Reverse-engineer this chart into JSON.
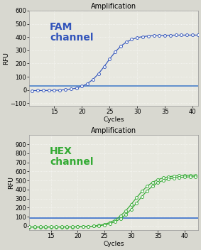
{
  "title": "Amplification",
  "fam_label": "FAM\nchannel",
  "hex_label": "HEX\nchannel",
  "ylabel": "RFU",
  "xlabel": "Cycles",
  "fam_color": "#3355bb",
  "hex_color": "#33aa33",
  "threshold_color_fam": "#5588cc",
  "threshold_color_hex": "#4477cc",
  "fam_ylim": [
    -120,
    600
  ],
  "hex_ylim": [
    -50,
    1000
  ],
  "fam_yticks": [
    -100,
    0,
    100,
    200,
    300,
    400,
    500,
    600
  ],
  "hex_yticks": [
    0,
    100,
    200,
    300,
    400,
    500,
    600,
    700,
    800,
    900
  ],
  "fam_xlim": [
    10.5,
    41
  ],
  "hex_xlim": [
    11,
    42.5
  ],
  "fam_xticks": [
    15,
    20,
    25,
    30,
    35,
    40
  ],
  "hex_xticks": [
    15,
    20,
    25,
    30,
    35,
    40
  ],
  "fam_threshold": 28,
  "hex_threshold": 82,
  "bg_color": "#e8e8e0",
  "fig_bg": "#d8d8d0"
}
